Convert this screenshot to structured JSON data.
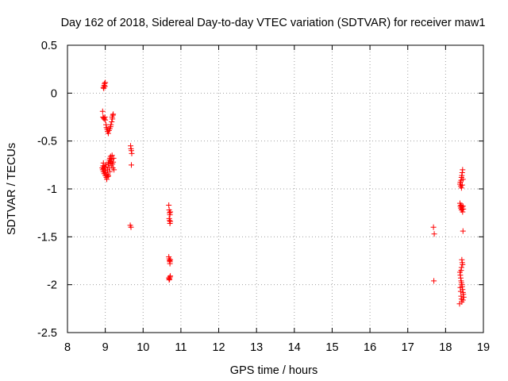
{
  "chart_data": {
    "type": "scatter",
    "title": "Day 162 of 2018, Sidereal Day-to-day VTEC variation (SDTVAR) for receiver maw1",
    "xlabel": "GPS time / hours",
    "ylabel": "SDTVAR / TECUs",
    "xlim": [
      8,
      19
    ],
    "ylim": [
      -2.5,
      0.5
    ],
    "xticks": [
      8,
      9,
      10,
      11,
      12,
      13,
      14,
      15,
      16,
      17,
      18,
      19
    ],
    "xtick_labels": [
      "8",
      "9",
      "10",
      "11",
      "12",
      "13",
      "14",
      "15",
      "16",
      "17",
      "18",
      "19"
    ],
    "yticks": [
      0.5,
      0,
      -0.5,
      -1,
      -1.5,
      -2,
      -2.5
    ],
    "ytick_labels": [
      "0.5",
      "0",
      "-0.5",
      "-1",
      "-1.5",
      "-2",
      "-2.5"
    ],
    "grid": true,
    "marker": "+",
    "marker_color": "#ff0000",
    "series": [
      {
        "name": "SDTVAR",
        "points": [
          [
            8.95,
            0.06
          ],
          [
            8.97,
            0.08
          ],
          [
            8.98,
            0.1
          ],
          [
            8.99,
            0.07
          ],
          [
            9.0,
            0.11
          ],
          [
            8.96,
            0.05
          ],
          [
            8.93,
            -0.19
          ],
          [
            8.94,
            -0.25
          ],
          [
            8.96,
            -0.26
          ],
          [
            8.97,
            -0.27
          ],
          [
            8.99,
            -0.25
          ],
          [
            9.0,
            -0.28
          ],
          [
            9.02,
            -0.33
          ],
          [
            9.03,
            -0.36
          ],
          [
            9.05,
            -0.38
          ],
          [
            9.06,
            -0.4
          ],
          [
            9.08,
            -0.42
          ],
          [
            9.1,
            -0.39
          ],
          [
            9.12,
            -0.37
          ],
          [
            9.14,
            -0.35
          ],
          [
            9.15,
            -0.33
          ],
          [
            9.17,
            -0.3
          ],
          [
            9.18,
            -0.25
          ],
          [
            9.2,
            -0.23
          ],
          [
            9.21,
            -0.22
          ],
          [
            9.19,
            -0.27
          ],
          [
            8.92,
            -0.78
          ],
          [
            8.93,
            -0.8
          ],
          [
            8.94,
            -0.76
          ],
          [
            8.95,
            -0.82
          ],
          [
            8.96,
            -0.79
          ],
          [
            8.97,
            -0.84
          ],
          [
            8.98,
            -0.77
          ],
          [
            8.99,
            -0.81
          ],
          [
            9.0,
            -0.86
          ],
          [
            9.01,
            -0.83
          ],
          [
            9.02,
            -0.75
          ],
          [
            9.03,
            -0.88
          ],
          [
            9.04,
            -0.9
          ],
          [
            9.05,
            -0.85
          ],
          [
            9.06,
            -0.8
          ],
          [
            9.07,
            -0.87
          ],
          [
            9.08,
            -0.74
          ],
          [
            9.09,
            -0.72
          ],
          [
            9.1,
            -0.78
          ],
          [
            9.11,
            -0.7
          ],
          [
            9.12,
            -0.68
          ],
          [
            9.13,
            -0.73
          ],
          [
            9.14,
            -0.66
          ],
          [
            9.15,
            -0.71
          ],
          [
            9.16,
            -0.76
          ],
          [
            9.17,
            -0.69
          ],
          [
            9.18,
            -0.65
          ],
          [
            9.19,
            -0.74
          ],
          [
            9.2,
            -0.78
          ],
          [
            9.21,
            -0.72
          ],
          [
            9.22,
            -0.68
          ],
          [
            9.23,
            -0.8
          ],
          [
            9.12,
            -0.82
          ],
          [
            9.08,
            -0.86
          ],
          [
            8.95,
            -0.73
          ],
          [
            9.0,
            -0.77
          ],
          [
            9.67,
            -0.55
          ],
          [
            9.68,
            -0.58
          ],
          [
            9.69,
            -0.6
          ],
          [
            9.7,
            -0.63
          ],
          [
            9.69,
            -0.75
          ],
          [
            9.66,
            -1.38
          ],
          [
            9.68,
            -1.4
          ],
          [
            10.68,
            -1.17
          ],
          [
            10.69,
            -1.22
          ],
          [
            10.7,
            -1.25
          ],
          [
            10.71,
            -1.27
          ],
          [
            10.72,
            -1.24
          ],
          [
            10.69,
            -1.31
          ],
          [
            10.7,
            -1.33
          ],
          [
            10.71,
            -1.36
          ],
          [
            10.72,
            -1.34
          ],
          [
            10.68,
            -1.71
          ],
          [
            10.69,
            -1.73
          ],
          [
            10.7,
            -1.75
          ],
          [
            10.71,
            -1.76
          ],
          [
            10.72,
            -1.74
          ],
          [
            10.71,
            -1.78
          ],
          [
            10.68,
            -1.93
          ],
          [
            10.69,
            -1.95
          ],
          [
            10.7,
            -1.94
          ],
          [
            10.71,
            -1.92
          ],
          [
            10.72,
            -1.91
          ],
          [
            17.68,
            -1.4
          ],
          [
            17.7,
            -1.47
          ],
          [
            17.69,
            -1.96
          ],
          [
            18.38,
            -0.95
          ],
          [
            18.39,
            -0.93
          ],
          [
            18.4,
            -0.97
          ],
          [
            18.41,
            -0.91
          ],
          [
            18.42,
            -0.88
          ],
          [
            18.43,
            -0.86
          ],
          [
            18.44,
            -0.83
          ],
          [
            18.45,
            -0.8
          ],
          [
            18.46,
            -0.9
          ],
          [
            18.44,
            -0.96
          ],
          [
            18.42,
            -0.99
          ],
          [
            18.38,
            -1.15
          ],
          [
            18.39,
            -1.18
          ],
          [
            18.4,
            -1.2
          ],
          [
            18.41,
            -1.17
          ],
          [
            18.42,
            -1.22
          ],
          [
            18.43,
            -1.19
          ],
          [
            18.44,
            -1.21
          ],
          [
            18.45,
            -1.24
          ],
          [
            18.46,
            -1.18
          ],
          [
            18.47,
            -1.21
          ],
          [
            18.46,
            -1.44
          ],
          [
            18.43,
            -1.74
          ],
          [
            18.44,
            -1.77
          ],
          [
            18.45,
            -1.79
          ],
          [
            18.42,
            -1.82
          ],
          [
            18.38,
            -1.87
          ],
          [
            18.39,
            -1.9
          ],
          [
            18.4,
            -1.93
          ],
          [
            18.41,
            -1.96
          ],
          [
            18.42,
            -1.98
          ],
          [
            18.43,
            -2.0
          ],
          [
            18.44,
            -2.02
          ],
          [
            18.45,
            -2.05
          ],
          [
            18.46,
            -2.08
          ],
          [
            18.47,
            -2.1
          ],
          [
            18.48,
            -2.13
          ],
          [
            18.39,
            -2.03
          ],
          [
            18.4,
            -2.07
          ],
          [
            18.41,
            -2.12
          ],
          [
            18.42,
            -2.15
          ],
          [
            18.43,
            -2.18
          ],
          [
            18.37,
            -2.2
          ],
          [
            18.46,
            -2.16
          ],
          [
            18.41,
            -1.85
          ]
        ]
      }
    ]
  }
}
